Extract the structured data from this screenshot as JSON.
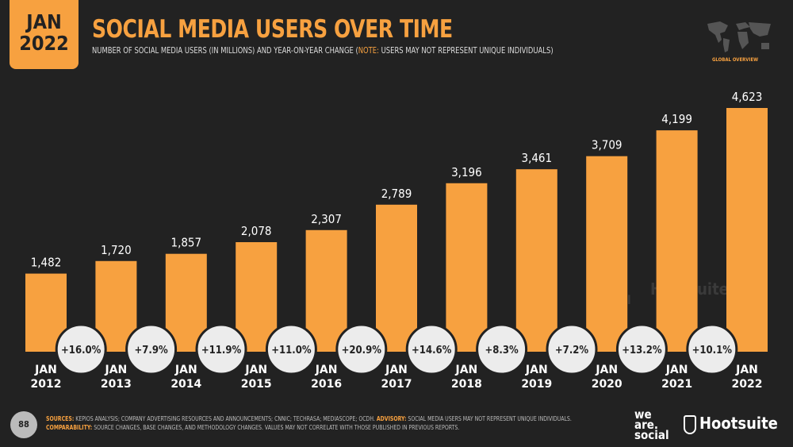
{
  "header": {
    "date_line1": "JAN",
    "date_line2": "2022",
    "title": "SOCIAL MEDIA USERS OVER TIME",
    "subtitle_pre": "NUMBER OF SOCIAL MEDIA USERS (IN MILLIONS) AND YEAR-ON-YEAR CHANGE (",
    "subtitle_note": "NOTE:",
    "subtitle_post": " USERS MAY NOT REPRESENT UNIQUE INDIVIDUALS)",
    "section": "GLOBAL OVERVIEW"
  },
  "chart_data": {
    "type": "bar",
    "categories": [
      [
        "JAN",
        "2012"
      ],
      [
        "JAN",
        "2013"
      ],
      [
        "JAN",
        "2014"
      ],
      [
        "JAN",
        "2015"
      ],
      [
        "JAN",
        "2016"
      ],
      [
        "JAN",
        "2017"
      ],
      [
        "JAN",
        "2018"
      ],
      [
        "JAN",
        "2019"
      ],
      [
        "JAN",
        "2020"
      ],
      [
        "JAN",
        "2021"
      ],
      [
        "JAN",
        "2022"
      ]
    ],
    "values": [
      1482,
      1720,
      1857,
      2078,
      2307,
      2789,
      3196,
      3461,
      3709,
      4199,
      4623
    ],
    "value_labels": [
      "1,482",
      "1,720",
      "1,857",
      "2,078",
      "2,307",
      "2,789",
      "3,196",
      "3,461",
      "3,709",
      "4,199",
      "4,623"
    ],
    "yoy_change": [
      "+16.0%",
      "+7.9%",
      "+11.9%",
      "+11.0%",
      "+20.9%",
      "+14.6%",
      "+8.3%",
      "+7.2%",
      "+13.2%",
      "+10.1%"
    ],
    "bar_color": "#f7a140",
    "circle_color": "#ececec",
    "grid": false
  },
  "footer": {
    "page": "88",
    "sources_label": "SOURCES:",
    "sources": " KEPIOS ANALYSIS; COMPANY ADVERTISING RESOURCES AND ANNOUNCEMENTS; CNNIC; TECHRASA; MEDIASCOPE; OCDH. ",
    "advisory_label": "ADVISORY:",
    "advisory": " SOCIAL MEDIA USERS MAY NOT REPRESENT UNIQUE INDIVIDUALS. ",
    "comparability_label": "COMPARABILITY:",
    "comparability": " SOURCE CHANGES, BASE CHANGES, AND METHODOLOGY CHANGES. VALUES MAY NOT CORRELATE WITH THOSE PUBLISHED IN PREVIOUS REPORTS.",
    "logo1": "we are social",
    "logo2": "Hootsuite"
  }
}
